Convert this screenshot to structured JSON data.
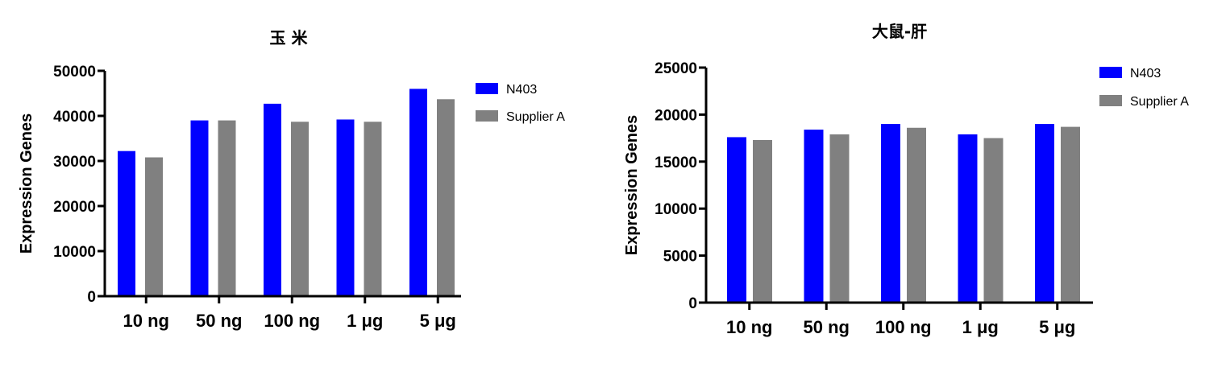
{
  "chart_data": [
    {
      "type": "bar",
      "title": "玉 米",
      "xlabel": "",
      "ylabel": "Expression Genes",
      "ylim": [
        0,
        50000
      ],
      "yticks": [
        0,
        10000,
        20000,
        30000,
        40000,
        50000
      ],
      "categories": [
        "10 ng",
        "50 ng",
        "100 ng",
        "1 μg",
        "5 μg"
      ],
      "series": [
        {
          "name": "N403",
          "color": "#0000ff",
          "values": [
            32200,
            39000,
            42700,
            39200,
            46000
          ]
        },
        {
          "name": "Supplier A",
          "color": "#808080",
          "values": [
            30800,
            39000,
            38700,
            38700,
            43700
          ]
        }
      ],
      "legend": "top-right",
      "grid": false
    },
    {
      "type": "bar",
      "title": "大鼠-肝",
      "xlabel": "",
      "ylabel": "Expression Genes",
      "ylim": [
        0,
        25000
      ],
      "yticks": [
        0,
        5000,
        10000,
        15000,
        20000,
        25000
      ],
      "categories": [
        "10 ng",
        "50 ng",
        "100 ng",
        "1 μg",
        "5 μg"
      ],
      "series": [
        {
          "name": "N403",
          "color": "#0000ff",
          "values": [
            17600,
            18400,
            19000,
            17900,
            19000
          ]
        },
        {
          "name": "Supplier A",
          "color": "#808080",
          "values": [
            17300,
            17900,
            18600,
            17500,
            18700
          ]
        }
      ],
      "legend": "top-right",
      "grid": false
    }
  ]
}
